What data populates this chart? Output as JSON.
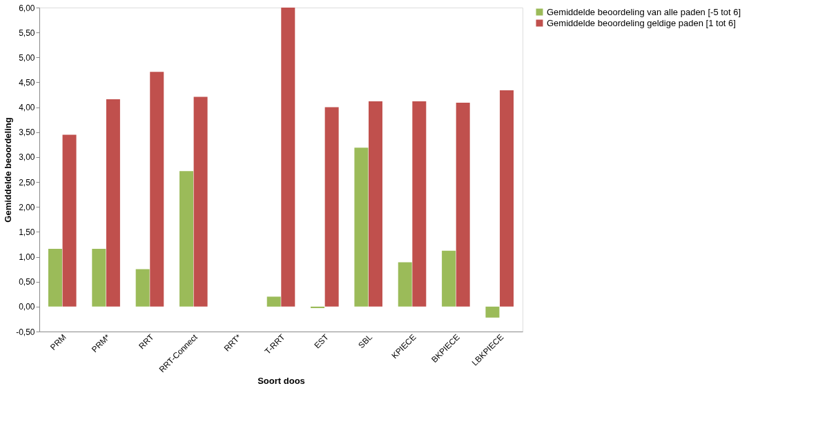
{
  "chart_data": {
    "type": "bar",
    "xlabel": "Soort doos",
    "ylabel": "Gemiddelde beoordeling",
    "categories": [
      "PRM",
      "PRM*",
      "RRT",
      "RRT-Connect",
      "RRT*",
      "T-RRT",
      "EST",
      "SBL",
      "KPIECE",
      "BKPIECE",
      "LBKPIECE"
    ],
    "series": [
      {
        "name": "Gemiddelde beoordeling van alle paden [-5 tot 6]",
        "color": "#9bbb59",
        "values": [
          1.16,
          1.16,
          0.75,
          2.72,
          null,
          0.2,
          -0.03,
          3.19,
          0.89,
          1.12,
          -0.22
        ]
      },
      {
        "name": "Gemiddelde beoordeling geldige paden [1 tot 6]",
        "color": "#c0504d",
        "values": [
          3.45,
          4.16,
          4.71,
          4.21,
          null,
          6.0,
          4.0,
          4.12,
          4.12,
          4.09,
          4.34
        ]
      }
    ],
    "ylim": [
      -0.5,
      6
    ],
    "yticks": [
      {
        "value": -0.5,
        "label": "-0,50"
      },
      {
        "value": 0,
        "label": "0,00"
      },
      {
        "value": 0.5,
        "label": "0,50"
      },
      {
        "value": 1,
        "label": "1,00"
      },
      {
        "value": 1.5,
        "label": "1,50"
      },
      {
        "value": 2,
        "label": "2,00"
      },
      {
        "value": 2.5,
        "label": "2,50"
      },
      {
        "value": 3,
        "label": "3,00"
      },
      {
        "value": 3.5,
        "label": "3,50"
      },
      {
        "value": 4,
        "label": "4,00"
      },
      {
        "value": 4.5,
        "label": "4,50"
      },
      {
        "value": 5,
        "label": "5,00"
      },
      {
        "value": 5.5,
        "label": "5,50"
      },
      {
        "value": 6,
        "label": "6,00"
      }
    ],
    "grid": false,
    "legend": "right"
  }
}
